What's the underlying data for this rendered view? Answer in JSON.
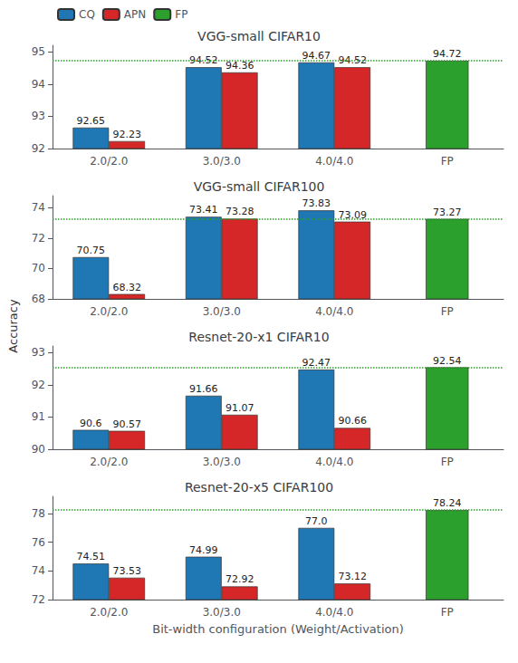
{
  "chart_data": [
    {
      "type": "bar",
      "title": "VGG-small CIFAR10",
      "categories": [
        "2.0/2.0",
        "3.0/3.0",
        "4.0/4.0",
        "FP"
      ],
      "series": [
        {
          "name": "CQ",
          "color": "#1f77b4",
          "values": [
            92.65,
            94.52,
            94.67,
            null
          ]
        },
        {
          "name": "APN",
          "color": "#d62728",
          "values": [
            92.23,
            94.36,
            94.52,
            null
          ]
        },
        {
          "name": "FP",
          "color": "#2ca02c",
          "values": [
            null,
            null,
            null,
            94.72
          ]
        }
      ],
      "hline": {
        "value": 94.72,
        "color": "#2ca02c",
        "line_style": "dotted"
      },
      "ylim": [
        92.0,
        95.2
      ],
      "yticks": [
        92,
        93,
        94,
        95
      ],
      "ylabel": "Accuracy",
      "data_labels": true,
      "grid": false,
      "legend": "upper left"
    },
    {
      "type": "bar",
      "title": "VGG-small CIFAR100",
      "categories": [
        "2.0/2.0",
        "3.0/3.0",
        "4.0/4.0",
        "FP"
      ],
      "series": [
        {
          "name": "CQ",
          "color": "#1f77b4",
          "values": [
            70.75,
            73.41,
            73.83,
            null
          ]
        },
        {
          "name": "APN",
          "color": "#d62728",
          "values": [
            68.32,
            73.28,
            73.09,
            null
          ]
        },
        {
          "name": "FP",
          "color": "#2ca02c",
          "values": [
            null,
            null,
            null,
            73.27
          ]
        }
      ],
      "hline": {
        "value": 73.27,
        "color": "#2ca02c",
        "line_style": "dotted"
      },
      "ylim": [
        68.0,
        74.8
      ],
      "yticks": [
        68,
        70,
        72,
        74
      ],
      "data_labels": true,
      "grid": false
    },
    {
      "type": "bar",
      "title": "Resnet-20-x1 CIFAR10",
      "categories": [
        "2.0/2.0",
        "3.0/3.0",
        "4.0/4.0",
        "FP"
      ],
      "series": [
        {
          "name": "CQ",
          "color": "#1f77b4",
          "values": [
            90.6,
            91.66,
            92.47,
            null
          ]
        },
        {
          "name": "APN",
          "color": "#d62728",
          "values": [
            90.57,
            91.07,
            90.66,
            null
          ]
        },
        {
          "name": "FP",
          "color": "#2ca02c",
          "values": [
            null,
            null,
            null,
            92.54
          ]
        }
      ],
      "hline": {
        "value": 92.54,
        "color": "#2ca02c",
        "line_style": "dotted"
      },
      "ylim": [
        90.0,
        93.2
      ],
      "yticks": [
        90,
        91,
        92,
        93
      ],
      "data_labels": true,
      "grid": false
    },
    {
      "type": "bar",
      "title": "Resnet-20-x5 CIFAR100",
      "categories": [
        "2.0/2.0",
        "3.0/3.0",
        "4.0/4.0",
        "FP"
      ],
      "series": [
        {
          "name": "CQ",
          "color": "#1f77b4",
          "values": [
            74.51,
            74.99,
            77.0,
            null
          ],
          "value_labels": [
            "74.51",
            "74.99",
            "77.0",
            null
          ]
        },
        {
          "name": "APN",
          "color": "#d62728",
          "values": [
            73.53,
            72.92,
            73.12,
            null
          ]
        },
        {
          "name": "FP",
          "color": "#2ca02c",
          "values": [
            null,
            null,
            null,
            78.24
          ]
        }
      ],
      "hline": {
        "value": 78.24,
        "color": "#2ca02c",
        "line_style": "dotted"
      },
      "ylim": [
        72.0,
        79.2
      ],
      "yticks": [
        72,
        74,
        76,
        78
      ],
      "xlabel": "Bit-width configuration (Weight/Activation)",
      "data_labels": true,
      "grid": false
    }
  ]
}
